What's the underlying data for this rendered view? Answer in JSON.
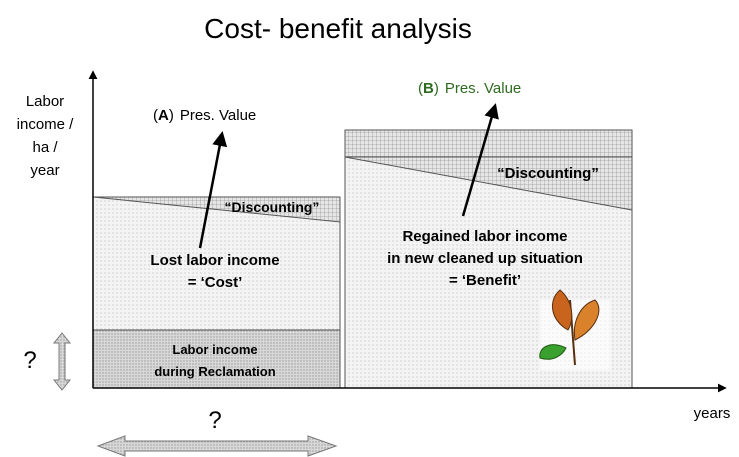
{
  "title": "Cost- benefit analysis",
  "y_axis_label": [
    "Labor",
    "income /",
    "ha /",
    "year"
  ],
  "x_axis_label": "years",
  "panel_a": {
    "marker": "(A)",
    "marker_letter": "A",
    "pres_value": "Pres. Value",
    "discounting": "“Discounting”",
    "cost": [
      "Lost labor income",
      "= ‘Cost’"
    ],
    "reclamation": [
      "Labor income",
      "during Reclamation"
    ]
  },
  "panel_b": {
    "marker_letter": "B",
    "pres_value": "Pres. Value",
    "discounting": "“Discounting”",
    "benefit": [
      "Regained labor income",
      "in new cleaned up situation",
      "= ‘Benefit’"
    ]
  },
  "height_question": "?",
  "duration_question": "?"
}
